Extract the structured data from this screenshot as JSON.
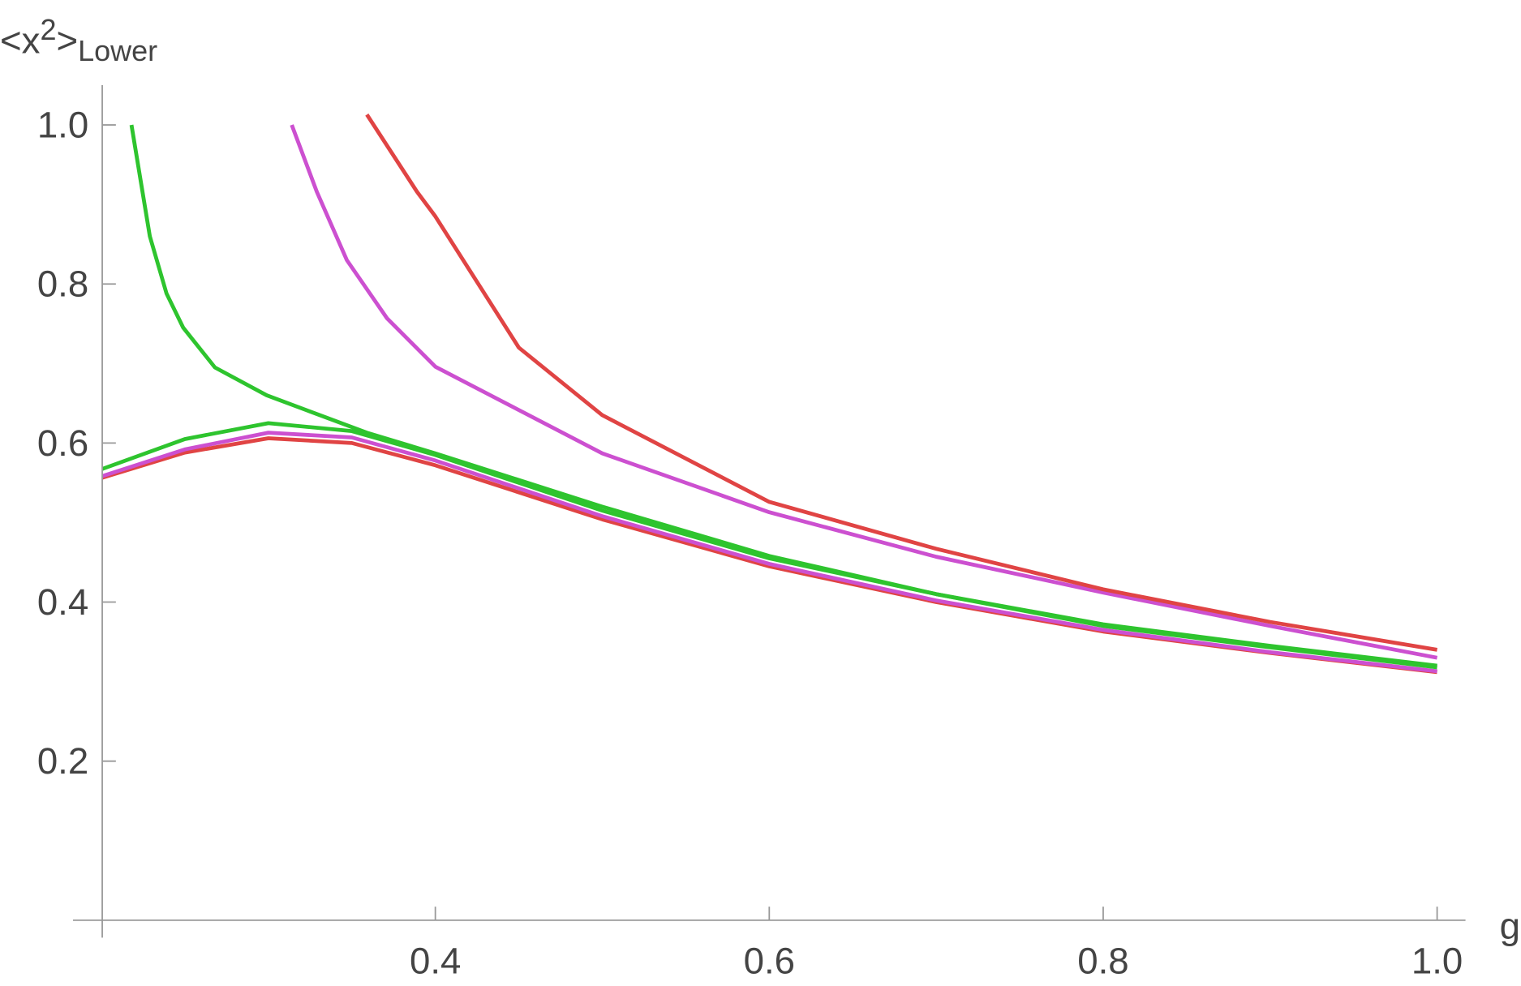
{
  "chart_data": {
    "type": "line",
    "xlabel": "g",
    "ylabel": {
      "base": "<x",
      "sup": "2",
      "close": ">",
      "sub": "Lower"
    },
    "xlim": [
      0.183,
      1.017
    ],
    "ylim": [
      0,
      1.05
    ],
    "xticks": [
      0.4,
      0.6,
      0.8,
      {
        "value": 1,
        "label": "1.0"
      }
    ],
    "yticks": [
      0.2,
      0.4,
      0.6,
      0.8,
      {
        "value": 1,
        "label": "1.0"
      }
    ],
    "series": [
      {
        "color": "#e04444",
        "x": [
          0.2,
          0.25,
          0.3,
          0.35,
          0.4,
          0.5,
          0.6,
          0.7,
          0.8,
          0.9,
          1.0
        ],
        "values": [
          0.556,
          0.588,
          0.606,
          0.6,
          0.572,
          0.504,
          0.445,
          0.4,
          0.363,
          0.336,
          0.312
        ]
      },
      {
        "color": "#cc50d0",
        "x": [
          0.2,
          0.25,
          0.3,
          0.35,
          0.4,
          0.5,
          0.6,
          0.7,
          0.8,
          0.9,
          1.0
        ],
        "values": [
          0.558,
          0.592,
          0.613,
          0.607,
          0.578,
          0.508,
          0.448,
          0.402,
          0.365,
          0.337,
          0.313
        ]
      },
      {
        "color": "#2ec42e",
        "x": [
          0.2,
          0.25,
          0.3,
          0.35,
          0.4,
          0.5,
          0.6,
          0.7,
          0.8,
          0.9,
          1.0
        ],
        "values": [
          0.567,
          0.605,
          0.625,
          0.615,
          0.585,
          0.515,
          0.455,
          0.41,
          0.37,
          0.343,
          0.318
        ]
      },
      {
        "color": "#2ec42e",
        "x": [
          0.218,
          0.229,
          0.239,
          0.249,
          0.268,
          0.299,
          0.359,
          0.4,
          0.5,
          0.6,
          0.7,
          0.8,
          0.9,
          1.0
        ],
        "values": [
          1.0,
          0.86,
          0.788,
          0.745,
          0.695,
          0.66,
          0.613,
          0.587,
          0.52,
          0.458,
          0.41,
          0.372,
          0.345,
          0.32
        ]
      },
      {
        "color": "#cc50d0",
        "x": [
          0.314,
          0.329,
          0.347,
          0.371,
          0.4,
          0.5,
          0.6,
          0.7,
          0.8,
          0.9,
          1.0
        ],
        "values": [
          1.0,
          0.916,
          0.83,
          0.757,
          0.696,
          0.587,
          0.513,
          0.457,
          0.412,
          0.37,
          0.33
        ]
      },
      {
        "color": "#e04444",
        "x": [
          0.359,
          0.389,
          0.4,
          0.45,
          0.5,
          0.6,
          0.7,
          0.8,
          0.9,
          1.0
        ],
        "values": [
          1.013,
          0.916,
          0.885,
          0.72,
          0.635,
          0.526,
          0.467,
          0.416,
          0.375,
          0.34
        ]
      }
    ]
  }
}
